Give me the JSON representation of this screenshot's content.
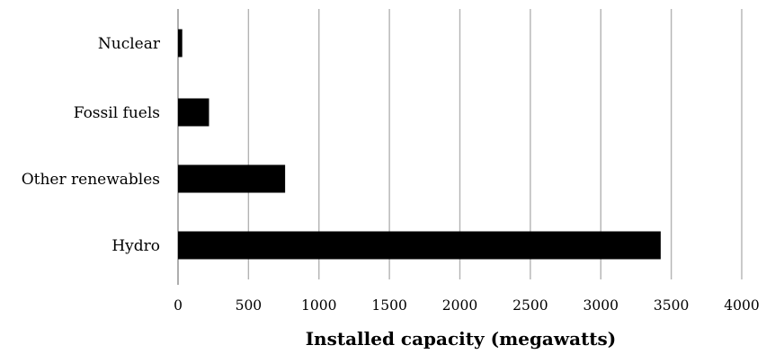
{
  "chart_data": {
    "type": "bar",
    "orientation": "horizontal",
    "title": "",
    "xlabel": "Installed capacity (megawatts)",
    "ylabel": "",
    "categories": [
      "Nuclear",
      "Fossil fuels",
      "Other renewables",
      "Hydro"
    ],
    "values": [
      30,
      220,
      760,
      3425
    ],
    "xlim": [
      0,
      4000
    ],
    "xticks": [
      0,
      500,
      1000,
      1500,
      2000,
      2500,
      3000,
      3500,
      4000
    ],
    "grid": "vertical",
    "legend": "none",
    "colors": {
      "bar": "#000000",
      "grid": "#b3b3b3",
      "axis": "#8c8c8c",
      "text": "#000000"
    }
  }
}
